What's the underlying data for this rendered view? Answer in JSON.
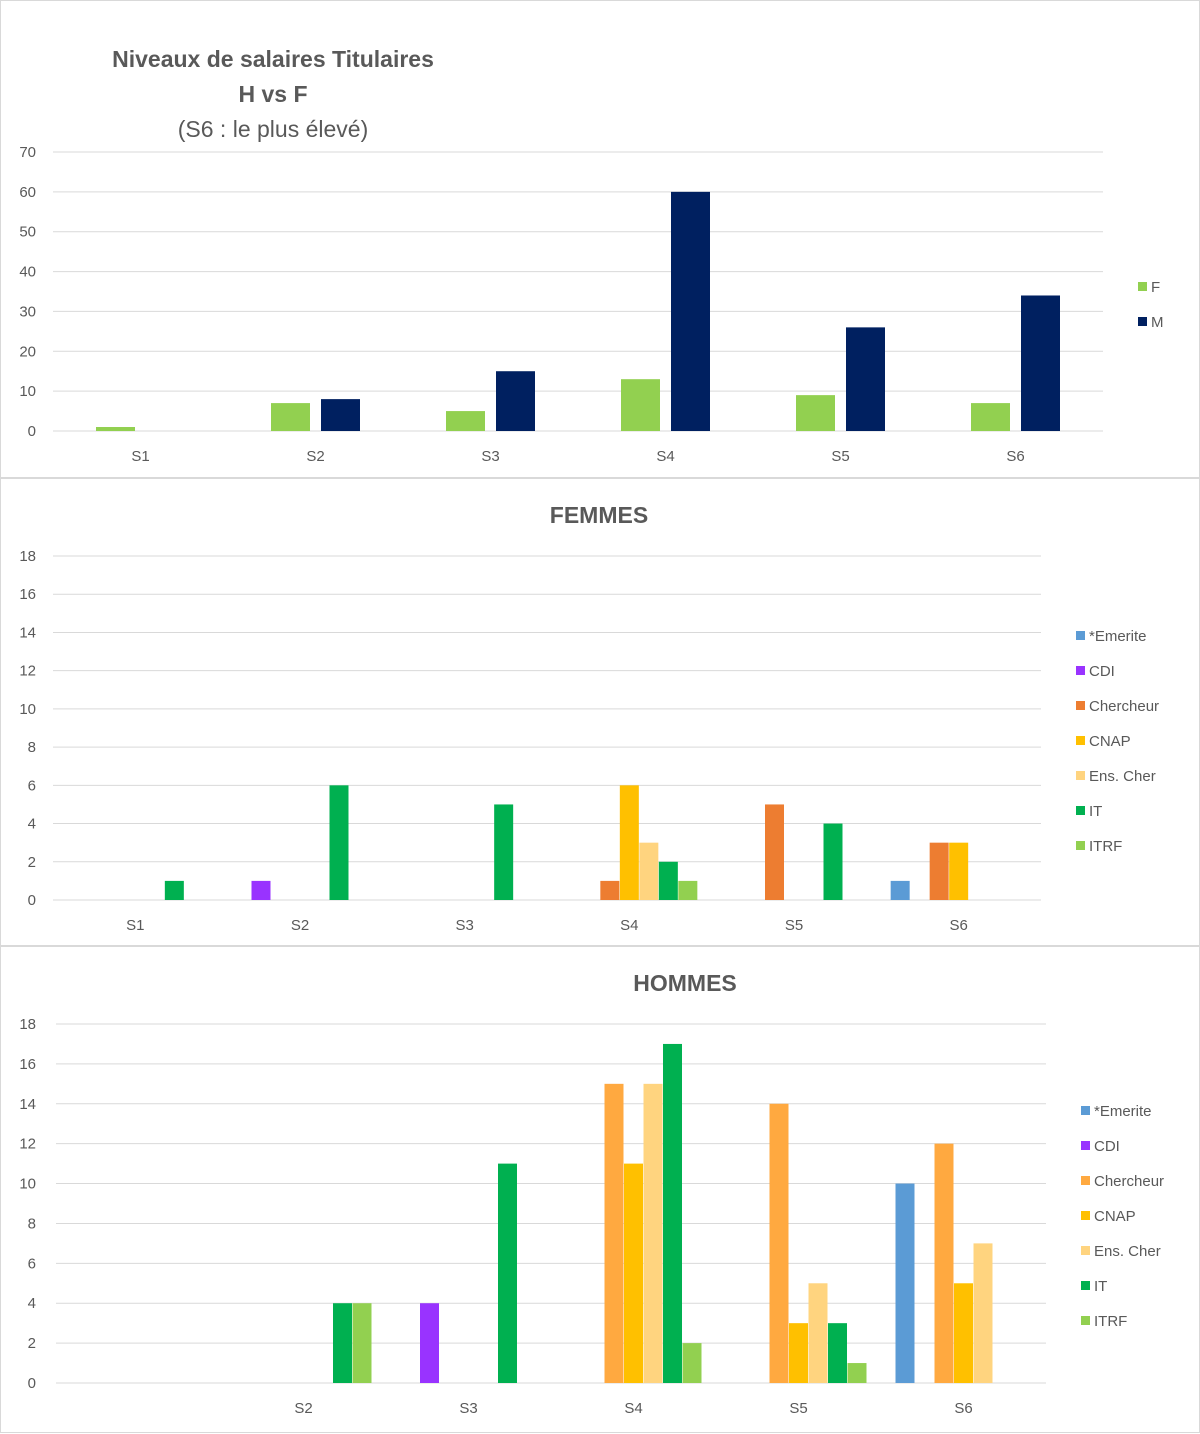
{
  "colors": {
    "F": "#92d050",
    "M": "#002060",
    "*Emerite": "#5b9bd5",
    "CDI": "#9933ff",
    "Chercheur_f": "#ed7d31",
    "Chercheur_h": "#ffa940",
    "CNAP": "#ffc000",
    "Ens. Cher": "#ffd47f",
    "IT": "#00b050",
    "ITRF": "#92d050"
  },
  "chart_data": [
    {
      "type": "bar",
      "title_lines": [
        "Niveaux de salaires Titulaires",
        "H vs F",
        "(S6 : le plus élevé)"
      ],
      "categories": [
        "S1",
        "S2",
        "S3",
        "S4",
        "S5",
        "S6"
      ],
      "ylim": [
        0,
        70
      ],
      "yticks": [
        0,
        10,
        20,
        30,
        40,
        50,
        60,
        70
      ],
      "legend_position": "right",
      "grid": true,
      "series": [
        {
          "name": "F",
          "color": "#92d050",
          "values": [
            1,
            7,
            5,
            13,
            9,
            7
          ]
        },
        {
          "name": "M",
          "color": "#002060",
          "values": [
            0,
            8,
            15,
            60,
            26,
            34
          ]
        }
      ]
    },
    {
      "type": "bar",
      "title": "FEMMES",
      "categories": [
        "S1",
        "S2",
        "S3",
        "S4",
        "S5",
        "S6"
      ],
      "ylim": [
        0,
        18
      ],
      "yticks": [
        0,
        2,
        4,
        6,
        8,
        10,
        12,
        14,
        16,
        18
      ],
      "legend_position": "right",
      "grid": true,
      "series": [
        {
          "name": "*Emerite",
          "color": "#5b9bd5",
          "values": [
            0,
            0,
            0,
            0,
            0,
            1
          ]
        },
        {
          "name": "CDI",
          "color": "#9933ff",
          "values": [
            0,
            1,
            0,
            0,
            0,
            0
          ]
        },
        {
          "name": "Chercheur",
          "color": "#ed7d31",
          "values": [
            0,
            0,
            0,
            1,
            5,
            3
          ]
        },
        {
          "name": "CNAP",
          "color": "#ffc000",
          "values": [
            0,
            0,
            0,
            6,
            0,
            3
          ]
        },
        {
          "name": "Ens. Cher",
          "color": "#ffd47f",
          "values": [
            0,
            0,
            0,
            3,
            0,
            0
          ]
        },
        {
          "name": "IT",
          "color": "#00b050",
          "values": [
            1,
            6,
            5,
            2,
            4,
            0
          ]
        },
        {
          "name": "ITRF",
          "color": "#92d050",
          "values": [
            0,
            0,
            0,
            1,
            0,
            0
          ]
        }
      ]
    },
    {
      "type": "bar",
      "title": "HOMMES",
      "categories": [
        "",
        "S2",
        "S3",
        "S4",
        "S5",
        "S6"
      ],
      "ylim": [
        0,
        18
      ],
      "yticks": [
        0,
        2,
        4,
        6,
        8,
        10,
        12,
        14,
        16,
        18
      ],
      "legend_position": "right",
      "grid": true,
      "series": [
        {
          "name": "*Emerite",
          "color": "#5b9bd5",
          "values": [
            0,
            0,
            0,
            0,
            0,
            10
          ]
        },
        {
          "name": "CDI",
          "color": "#9933ff",
          "values": [
            0,
            0,
            4,
            0,
            0,
            0
          ]
        },
        {
          "name": "Chercheur",
          "color": "#ffa940",
          "values": [
            0,
            0,
            0,
            15,
            14,
            12
          ]
        },
        {
          "name": "CNAP",
          "color": "#ffc000",
          "values": [
            0,
            0,
            0,
            11,
            3,
            5
          ]
        },
        {
          "name": "Ens. Cher",
          "color": "#ffd47f",
          "values": [
            0,
            0,
            0,
            15,
            5,
            7
          ]
        },
        {
          "name": "IT",
          "color": "#00b050",
          "values": [
            0,
            4,
            11,
            17,
            3,
            0
          ]
        },
        {
          "name": "ITRF",
          "color": "#92d050",
          "values": [
            0,
            4,
            0,
            2,
            1,
            0
          ]
        }
      ]
    }
  ]
}
